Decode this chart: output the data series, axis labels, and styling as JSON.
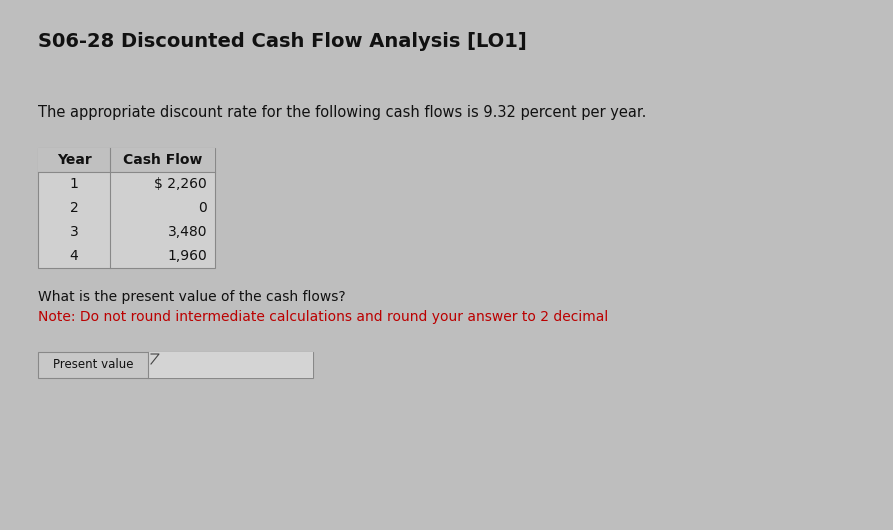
{
  "title": "S06-28 Discounted Cash Flow Analysis [LO1]",
  "subtitle": "The appropriate discount rate for the following cash flows is 9.32 percent per year.",
  "table_headers": [
    "Year",
    "Cash Flow"
  ],
  "table_years": [
    "1",
    "2",
    "3",
    "4"
  ],
  "table_cashflows": [
    "$ 2,260",
    "0",
    "3,480",
    "1,960"
  ],
  "question_line1": "What is the present value of the cash flows?",
  "question_line2": "Note: Do not round intermediate calculations and round your answer to 2 decimal",
  "input_label": "Present value",
  "bg_color": "#bebebe",
  "title_color": "#111111",
  "subtitle_color": "#111111",
  "table_header_color": "#111111",
  "table_data_color": "#111111",
  "question_color": "#111111",
  "note_color": "#bb0000",
  "input_label_color": "#111111",
  "table_header_bg": "#c0c0c0",
  "table_body_bg": "#d0d0d0",
  "input_label_bg": "#c8c8c8",
  "input_box_bg": "#d4d4d4"
}
